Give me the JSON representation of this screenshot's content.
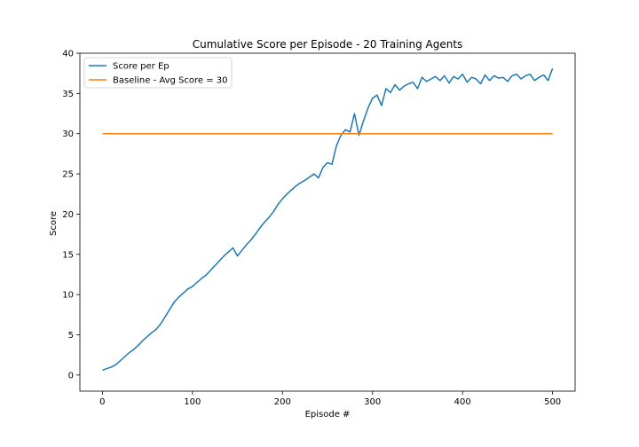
{
  "chart_data": {
    "type": "line",
    "title": "Cumulative Score per Episode - 20 Training Agents",
    "xlabel": "Episode #",
    "ylabel": "Score",
    "xlim": [
      -25,
      525
    ],
    "ylim": [
      -2,
      40
    ],
    "xticks": [
      0,
      100,
      200,
      300,
      400,
      500
    ],
    "yticks": [
      0,
      5,
      10,
      15,
      20,
      25,
      30,
      35,
      40
    ],
    "grid": false,
    "legend_position": "top-left",
    "series": [
      {
        "name": "Score per Ep",
        "color": "#1f77b4",
        "x": [
          0,
          5,
          10,
          15,
          20,
          25,
          30,
          35,
          40,
          45,
          50,
          55,
          60,
          65,
          70,
          75,
          80,
          85,
          90,
          95,
          100,
          105,
          110,
          115,
          120,
          125,
          130,
          135,
          140,
          145,
          150,
          155,
          160,
          165,
          170,
          175,
          180,
          185,
          190,
          195,
          200,
          205,
          210,
          215,
          220,
          225,
          230,
          235,
          240,
          245,
          250,
          255,
          260,
          265,
          270,
          275,
          280,
          285,
          290,
          295,
          300,
          305,
          310,
          315,
          320,
          325,
          330,
          335,
          340,
          345,
          350,
          355,
          360,
          365,
          370,
          375,
          380,
          385,
          390,
          395,
          400,
          405,
          410,
          415,
          420,
          425,
          430,
          435,
          440,
          445,
          450,
          455,
          460,
          465,
          470,
          475,
          480,
          485,
          490,
          495,
          500
        ],
        "y": [
          0.6,
          0.8,
          1.0,
          1.3,
          1.8,
          2.3,
          2.8,
          3.2,
          3.7,
          4.3,
          4.8,
          5.3,
          5.7,
          6.4,
          7.3,
          8.2,
          9.1,
          9.7,
          10.2,
          10.7,
          11.0,
          11.5,
          12.0,
          12.4,
          13.0,
          13.6,
          14.2,
          14.8,
          15.3,
          15.8,
          14.8,
          15.5,
          16.2,
          16.8,
          17.5,
          18.3,
          19.0,
          19.6,
          20.3,
          21.2,
          21.9,
          22.5,
          23.0,
          23.5,
          23.9,
          24.2,
          24.6,
          25.0,
          24.5,
          25.8,
          26.4,
          26.2,
          28.5,
          29.8,
          30.5,
          30.2,
          32.5,
          29.8,
          31.6,
          33.2,
          34.4,
          34.8,
          33.5,
          35.6,
          35.1,
          36.1,
          35.4,
          35.9,
          36.2,
          36.4,
          35.6,
          37.0,
          36.5,
          36.8,
          37.1,
          36.6,
          37.2,
          36.3,
          37.1,
          36.8,
          37.4,
          36.4,
          37.0,
          36.8,
          36.2,
          37.3,
          36.6,
          37.2,
          36.9,
          37.0,
          36.5,
          37.2,
          37.4,
          36.8,
          37.2,
          37.4,
          36.6,
          37.0,
          37.3,
          36.6,
          38.1
        ]
      },
      {
        "name": "Baseline - Avg Score = 30",
        "color": "#ff7f0e",
        "x": [
          0,
          500
        ],
        "y": [
          30,
          30
        ]
      }
    ]
  }
}
